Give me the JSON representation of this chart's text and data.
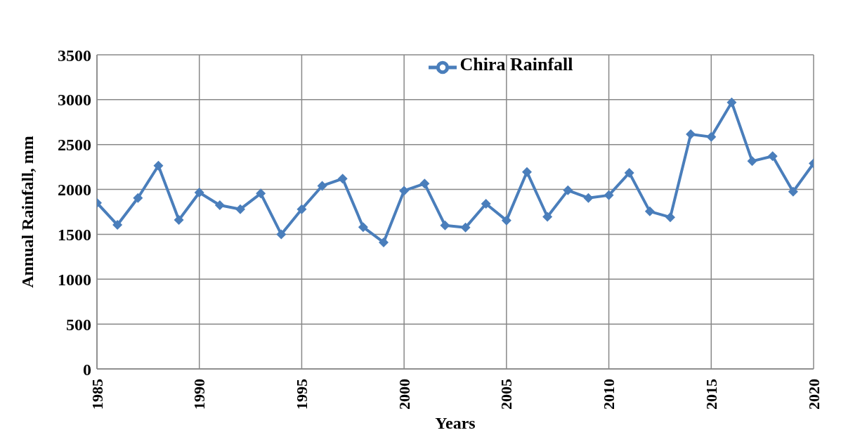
{
  "chart_data": {
    "type": "line",
    "xlabel": "Years",
    "ylabel": "Annual Rainfall, mm",
    "x": [
      1985,
      1986,
      1987,
      1988,
      1989,
      1990,
      1991,
      1992,
      1993,
      1994,
      1995,
      1996,
      1997,
      1998,
      1999,
      2000,
      2001,
      2002,
      2003,
      2004,
      2005,
      2006,
      2007,
      2008,
      2009,
      2010,
      2011,
      2012,
      2013,
      2014,
      2015,
      2016,
      2017,
      2018,
      2019,
      2020
    ],
    "series": [
      {
        "name": "Chira Rainfall",
        "color": "#4a7ebb",
        "values": [
          1850,
          1605,
          1905,
          2265,
          1660,
          1965,
          1825,
          1780,
          1955,
          1500,
          1780,
          2040,
          2120,
          1580,
          1410,
          1985,
          2065,
          1600,
          1575,
          1840,
          1655,
          2195,
          1695,
          1990,
          1905,
          1935,
          2185,
          1755,
          1690,
          2615,
          2585,
          2970,
          2315,
          2370,
          1975,
          2290
        ]
      }
    ],
    "xlim": [
      1985,
      2020
    ],
    "xticks": [
      1985,
      1990,
      1995,
      2000,
      2005,
      2010,
      2015,
      2020
    ],
    "ylim": [
      0,
      3500
    ],
    "yticks": [
      0,
      500,
      1000,
      1500,
      2000,
      2500,
      3000,
      3500
    ],
    "grid": true,
    "legend": "top",
    "marker": "diamond",
    "line_style": "solid"
  }
}
